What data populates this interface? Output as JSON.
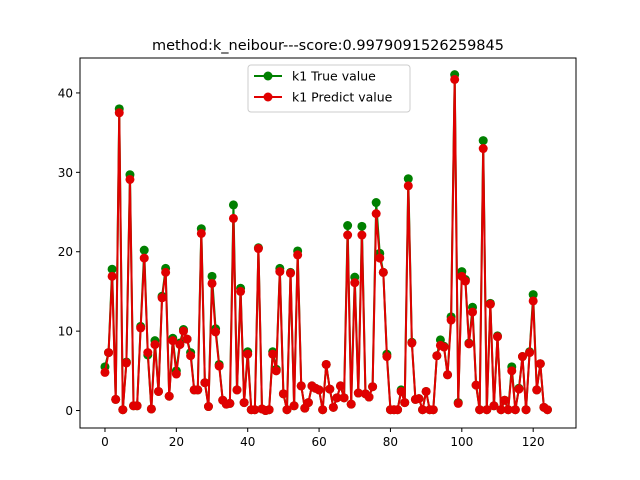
{
  "chart_data": {
    "type": "line",
    "title": "method:k_neibour---score:0.9979091526259845",
    "xlabel": "",
    "ylabel": "",
    "xlim": [
      -7,
      132
    ],
    "ylim": [
      -2.2,
      44.4
    ],
    "xticks": [
      0,
      20,
      40,
      60,
      80,
      100,
      120
    ],
    "yticks": [
      0,
      10,
      20,
      30,
      40
    ],
    "grid": false,
    "legend_position": "upper center",
    "series": [
      {
        "name": "k1 True value",
        "color": "#008000",
        "values": [
          5.5,
          7.3,
          17.8,
          1.4,
          38.0,
          0.1,
          6.1,
          29.7,
          0.6,
          0.6,
          10.6,
          20.2,
          7.0,
          0.2,
          8.8,
          2.4,
          14.4,
          17.9,
          1.8,
          9.1,
          5.0,
          8.5,
          10.2,
          9.0,
          7.3,
          2.6,
          2.6,
          22.9,
          3.5,
          0.5,
          16.9,
          10.3,
          5.8,
          1.3,
          0.8,
          0.9,
          25.9,
          2.6,
          15.4,
          1.0,
          7.4,
          0.1,
          0.1,
          20.5,
          0.2,
          0.0,
          0.1,
          7.4,
          5.2,
          17.9,
          2.1,
          0.1,
          17.4,
          0.6,
          20.1,
          3.1,
          0.3,
          1.0,
          3.1,
          2.8,
          2.6,
          0.1,
          5.8,
          2.7,
          0.4,
          1.6,
          3.1,
          1.6,
          23.3,
          0.8,
          16.8,
          2.2,
          23.2,
          2.1,
          1.7,
          3.0,
          26.2,
          19.8,
          17.4,
          7.1,
          0.1,
          0.1,
          0.1,
          2.6,
          1.0,
          29.2,
          8.6,
          1.4,
          1.5,
          0.1,
          2.4,
          0.1,
          0.1,
          6.9,
          8.9,
          8.1,
          4.5,
          11.8,
          42.3,
          1.0,
          17.5,
          16.5,
          8.5,
          13.0,
          3.2,
          0.1,
          34.0,
          0.1,
          13.5,
          0.6,
          9.4,
          0.1,
          1.3,
          0.1,
          5.5,
          0.1,
          2.8,
          6.8,
          0.1,
          7.4,
          14.6,
          2.6,
          5.9,
          0.4,
          0.1
        ]
      },
      {
        "name": "k1 Predict value",
        "color": "#e00000",
        "values": [
          4.8,
          7.3,
          16.9,
          1.4,
          37.5,
          0.1,
          6.0,
          29.1,
          0.6,
          0.6,
          10.4,
          19.2,
          7.3,
          0.2,
          8.3,
          2.4,
          14.2,
          17.4,
          1.8,
          8.8,
          4.6,
          8.3,
          10.0,
          9.0,
          6.9,
          2.6,
          2.6,
          22.3,
          3.5,
          0.5,
          16.0,
          9.9,
          5.6,
          1.3,
          0.8,
          0.9,
          24.2,
          2.6,
          15.0,
          1.0,
          7.1,
          0.1,
          0.1,
          20.4,
          0.2,
          0.0,
          0.1,
          7.1,
          5.0,
          17.5,
          2.1,
          0.1,
          17.3,
          0.6,
          19.6,
          3.1,
          0.3,
          1.0,
          3.1,
          2.8,
          2.6,
          0.1,
          5.8,
          2.7,
          0.4,
          1.6,
          3.1,
          1.6,
          22.1,
          0.8,
          16.1,
          2.2,
          22.1,
          2.1,
          1.7,
          3.0,
          24.8,
          19.2,
          17.4,
          6.8,
          0.1,
          0.1,
          0.1,
          2.4,
          1.0,
          28.3,
          8.5,
          1.4,
          1.5,
          0.1,
          2.4,
          0.1,
          0.1,
          6.9,
          8.2,
          8.0,
          4.5,
          11.4,
          41.7,
          0.9,
          16.9,
          16.3,
          8.4,
          12.4,
          3.2,
          0.1,
          33.0,
          0.1,
          13.4,
          0.6,
          9.3,
          0.1,
          1.3,
          0.1,
          5.0,
          0.1,
          2.7,
          6.8,
          0.1,
          7.3,
          13.8,
          2.6,
          5.9,
          0.4,
          0.1
        ]
      }
    ]
  }
}
